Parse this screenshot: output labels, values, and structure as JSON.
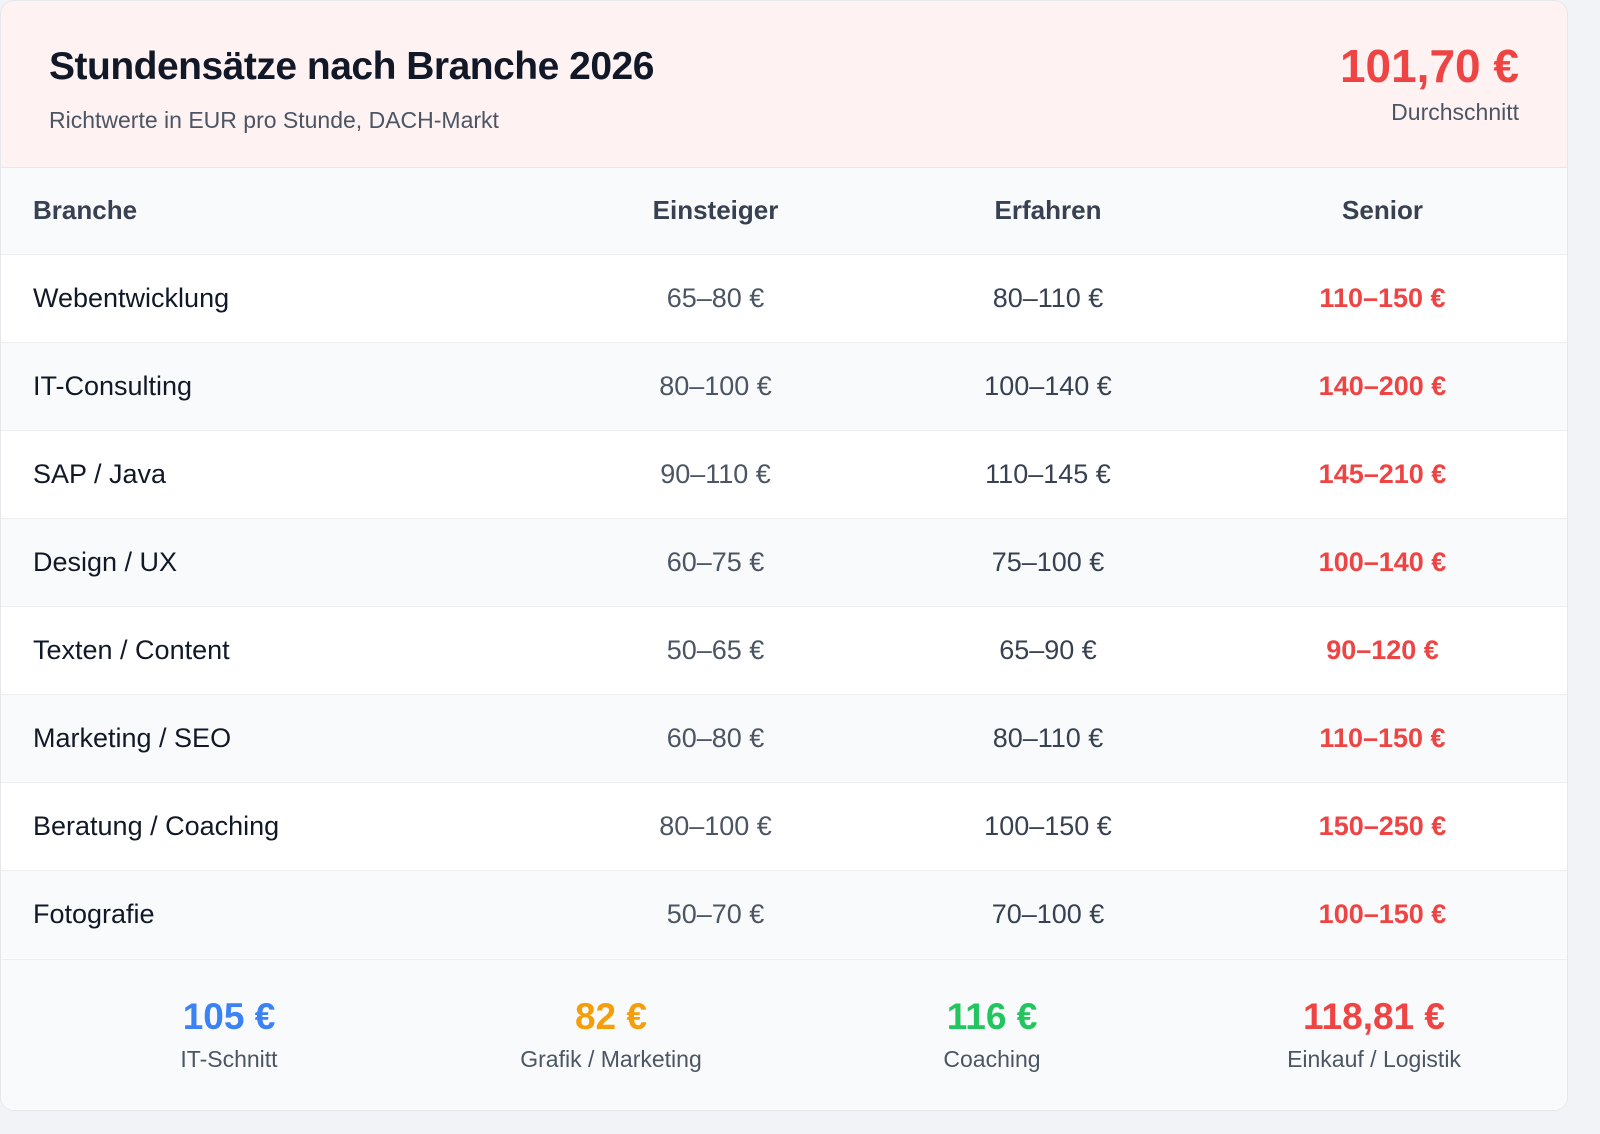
{
  "header": {
    "title": "Stundensätze nach Branche 2026",
    "subtitle": "Richtwerte in EUR pro Stunde, DACH-Markt",
    "average_value": "101,70 €",
    "average_label": "Durchschnitt"
  },
  "table": {
    "columns": [
      "Branche",
      "Einsteiger",
      "Erfahren",
      "Senior"
    ],
    "rows": [
      [
        "Webentwicklung",
        "65–80 €",
        "80–110 €",
        "110–150 €"
      ],
      [
        "IT-Consulting",
        "80–100 €",
        "100–140 €",
        "140–200 €"
      ],
      [
        "SAP / Java",
        "90–110 €",
        "110–145 €",
        "145–210 €"
      ],
      [
        "Design / UX",
        "60–75 €",
        "75–100 €",
        "100–140 €"
      ],
      [
        "Texten / Content",
        "50–65 €",
        "65–90 €",
        "90–120 €"
      ],
      [
        "Marketing / SEO",
        "60–80 €",
        "80–110 €",
        "110–150 €"
      ],
      [
        "Beratung / Coaching",
        "80–100 €",
        "100–150 €",
        "150–250 €"
      ],
      [
        "Fotografie",
        "50–70 €",
        "70–100 €",
        "100–150 €"
      ]
    ]
  },
  "stats": [
    {
      "value": "105 €",
      "label": "IT-Schnitt",
      "color": "#3b82f6"
    },
    {
      "value": "82 €",
      "label": "Grafik / Marketing",
      "color": "#f59e0b"
    },
    {
      "value": "116 €",
      "label": "Coaching",
      "color": "#22c55e"
    },
    {
      "value": "118,81 €",
      "label": "Einkauf / Logistik",
      "color": "#ef4444"
    }
  ],
  "colors": {
    "accent": "#ef4444",
    "header_bg": "#fef2f2"
  }
}
